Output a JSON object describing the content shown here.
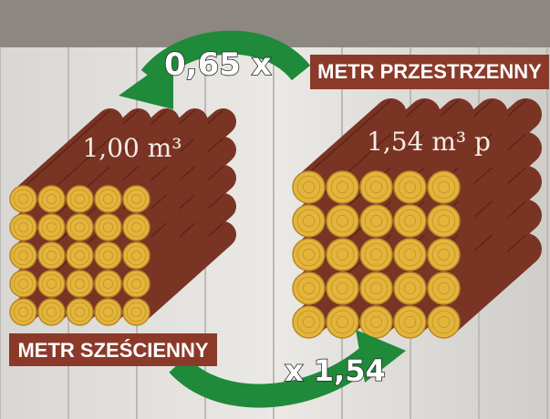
{
  "labels": {
    "top_multiplier": "0,65 x",
    "top_unit": "METR PRZESTRZENNY",
    "left_stack_volume": "1,00 m³",
    "right_stack_volume": "1,54 m³ p",
    "bottom_unit": "METR SZEŚCIENNY",
    "bottom_multiplier": "x 1,54"
  }
}
